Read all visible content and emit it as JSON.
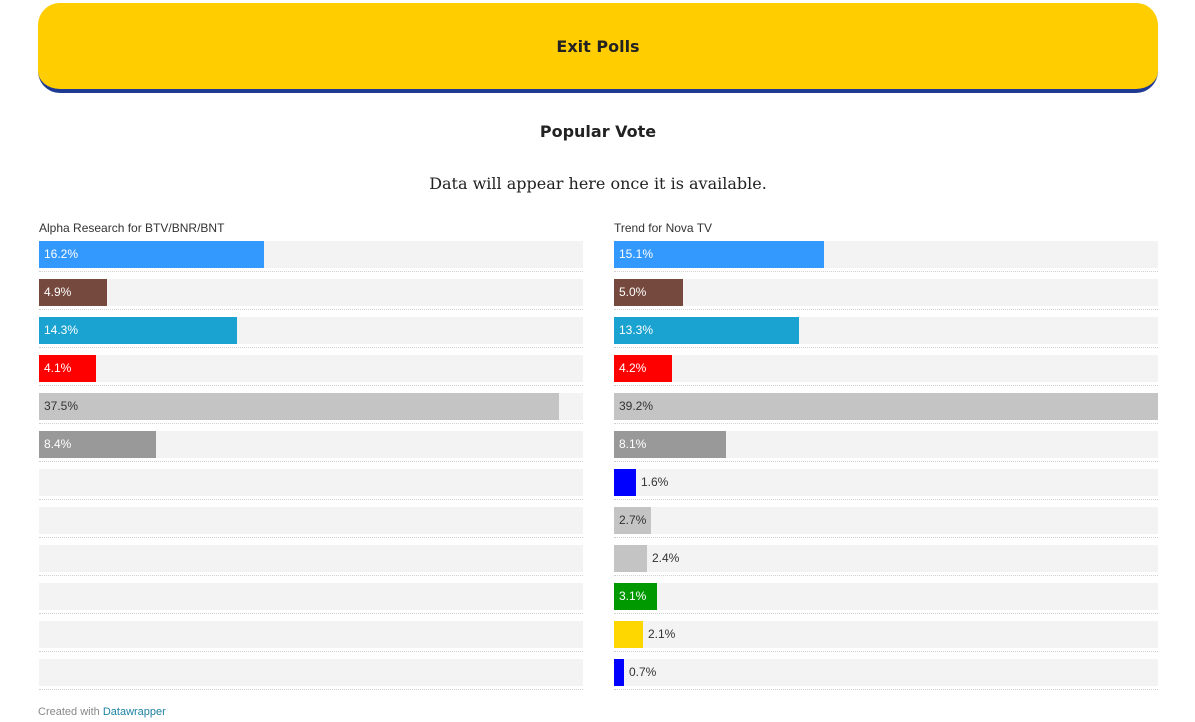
{
  "header": {
    "title": "Exit Polls",
    "banner_color": "#ffcd00",
    "banner_border_color": "#1f3a93"
  },
  "subtitle": "Popular Vote",
  "notice": "Data will appear here once it is available.",
  "footer": {
    "prefix": "Created with",
    "link_text": "Datawrapper"
  },
  "chart_data": [
    {
      "type": "bar",
      "title": "Alpha Research for BTV/BNR/BNT",
      "xlim": [
        0,
        39.2
      ],
      "rows": 12,
      "values": [
        16.2,
        4.9,
        14.3,
        4.1,
        37.5,
        8.4
      ],
      "labels": [
        "16.2%",
        "4.9%",
        "14.3%",
        "4.1%",
        "37.5%",
        "8.4%"
      ],
      "colors": [
        "#3399ff",
        "#75493d",
        "#1aa3d0",
        "#ff0000",
        "#c4c4c4",
        "#999999"
      ]
    },
    {
      "type": "bar",
      "title": "Trend for Nova TV",
      "xlim": [
        0,
        39.2
      ],
      "rows": 12,
      "values": [
        15.1,
        5.0,
        13.3,
        4.2,
        39.2,
        8.1,
        1.6,
        2.7,
        2.4,
        3.1,
        2.1,
        0.7
      ],
      "labels": [
        "15.1%",
        "5.0%",
        "13.3%",
        "4.2%",
        "39.2%",
        "8.1%",
        "1.6%",
        "2.7%",
        "2.4%",
        "3.1%",
        "2.1%",
        "0.7%"
      ],
      "colors": [
        "#3399ff",
        "#75493d",
        "#1aa3d0",
        "#ff0000",
        "#c4c4c4",
        "#999999",
        "#0000ff",
        "#c4c4c4",
        "#c4c4c4",
        "#009900",
        "#ffd700",
        "#0000ff"
      ]
    }
  ]
}
